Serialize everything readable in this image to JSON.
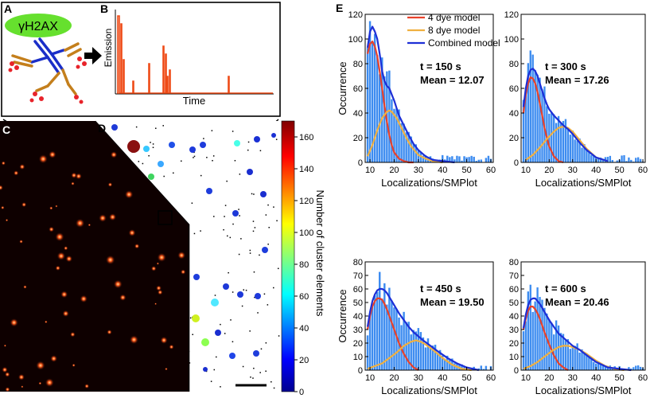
{
  "panel_labels": {
    "A": "A",
    "B": "B",
    "C": "C",
    "D": "D",
    "E": "E"
  },
  "panel_a": {
    "antigen_label": "γH2AX"
  },
  "panel_b": {
    "ylabel": "Emission",
    "xlabel": "Time"
  },
  "colorbar": {
    "label": "Number of cluster elements",
    "ticks": [
      0,
      20,
      40,
      60,
      80,
      100,
      120,
      140,
      160
    ],
    "range": [
      0,
      170
    ]
  },
  "colors": {
    "four_dye": "#e8412a",
    "eight_dye": "#f0b040",
    "combined": "#1d2fd6",
    "hist": "#3d8cf0",
    "emission": "#ee4a16"
  },
  "legend": {
    "items": [
      {
        "label": "4 dye model",
        "color": "#e8412a"
      },
      {
        "label": "8 dye model",
        "color": "#f0b040"
      },
      {
        "label": "Combined model",
        "color": "#1d2fd6"
      }
    ]
  },
  "chart_data": [
    {
      "type": "bar",
      "title": "t = 150 s",
      "subtitle": "Mean = 12.07",
      "xlabel": "Localizations/SMPlot",
      "ylabel": "Occurrence",
      "xlim": [
        8,
        61
      ],
      "ylim": [
        0,
        120
      ],
      "xticks": [
        10,
        20,
        30,
        40,
        50,
        60
      ],
      "yticks": [
        0,
        20,
        40,
        60,
        80,
        100,
        120
      ],
      "series": [
        {
          "name": "4 dye model",
          "x": [
            9,
            10,
            11,
            12,
            13,
            14,
            15,
            16,
            17,
            18,
            19,
            20,
            22,
            24,
            26,
            28
          ],
          "values": [
            88,
            96,
            98,
            94,
            86,
            74,
            60,
            46,
            33,
            22,
            14,
            8,
            3,
            1,
            0,
            0
          ]
        },
        {
          "name": "8 dye model",
          "x": [
            9,
            11,
            13,
            15,
            17,
            18,
            19,
            21,
            23,
            25,
            27,
            30,
            33,
            36,
            40
          ],
          "values": [
            5,
            14,
            26,
            36,
            41,
            42,
            41,
            36,
            28,
            20,
            13,
            6,
            3,
            1,
            0
          ]
        },
        {
          "name": "Combined model",
          "x": [
            9,
            10,
            11,
            12,
            13,
            14,
            15,
            16,
            17,
            18,
            19,
            20,
            21,
            22,
            24,
            26,
            28,
            30,
            33,
            36,
            40,
            45
          ],
          "values": [
            93,
            106,
            110,
            106,
            100,
            88,
            74,
            66,
            62,
            60,
            55,
            50,
            44,
            38,
            30,
            22,
            15,
            10,
            5,
            2,
            1,
            0
          ]
        }
      ]
    },
    {
      "type": "bar",
      "title": "t = 300 s",
      "subtitle": "Mean = 17.26",
      "xlabel": "Localizations/SMPlot",
      "ylabel": "",
      "xlim": [
        8,
        61
      ],
      "ylim": [
        0,
        120
      ],
      "xticks": [
        10,
        20,
        30,
        40,
        50,
        60
      ],
      "yticks": [
        0,
        20,
        40,
        60,
        80,
        100,
        120
      ],
      "series": [
        {
          "name": "4 dye model",
          "x": [
            9,
            10,
            11,
            12,
            13,
            14,
            15,
            16,
            17,
            18,
            19,
            20,
            22,
            24,
            26
          ],
          "values": [
            40,
            55,
            64,
            69,
            68,
            64,
            57,
            48,
            38,
            28,
            20,
            13,
            5,
            1,
            0
          ]
        },
        {
          "name": "8 dye model",
          "x": [
            10,
            13,
            16,
            19,
            22,
            24,
            26,
            28,
            30,
            33,
            36,
            40,
            45
          ],
          "values": [
            2,
            6,
            12,
            19,
            25,
            28,
            29,
            28,
            25,
            18,
            11,
            4,
            1
          ]
        },
        {
          "name": "Combined model",
          "x": [
            9,
            10,
            11,
            12,
            13,
            14,
            15,
            16,
            17,
            18,
            19,
            20,
            22,
            24,
            26,
            28,
            30,
            33,
            36,
            40,
            45
          ],
          "values": [
            45,
            60,
            70,
            75,
            76,
            74,
            70,
            64,
            58,
            52,
            47,
            43,
            38,
            34,
            30,
            27,
            23,
            16,
            10,
            4,
            1
          ]
        }
      ]
    },
    {
      "type": "bar",
      "title": "t = 450 s",
      "subtitle": "Mean = 19.50",
      "xlabel": "Localizations/SMPlot",
      "ylabel": "Occurrence",
      "xlim": [
        8,
        61
      ],
      "ylim": [
        0,
        80
      ],
      "xticks": [
        10,
        20,
        30,
        40,
        50,
        60
      ],
      "yticks": [
        0,
        10,
        20,
        30,
        40,
        50,
        60,
        70,
        80
      ],
      "series": [
        {
          "name": "4 dye model",
          "x": [
            9,
            10,
            11,
            12,
            13,
            14,
            15,
            16,
            17,
            18,
            20,
            22,
            24,
            26,
            28,
            30
          ],
          "values": [
            30,
            40,
            47,
            51,
            53,
            53,
            52,
            49,
            45,
            40,
            30,
            20,
            12,
            6,
            2,
            0
          ]
        },
        {
          "name": "8 dye model",
          "x": [
            9,
            12,
            15,
            18,
            21,
            24,
            27,
            29,
            31,
            33,
            36,
            40,
            44,
            48,
            52
          ],
          "values": [
            1,
            3,
            5,
            9,
            13,
            18,
            21,
            22,
            21,
            19,
            15,
            9,
            4,
            1,
            0
          ]
        },
        {
          "name": "Combined model",
          "x": [
            9,
            10,
            11,
            12,
            13,
            14,
            15,
            16,
            17,
            18,
            20,
            22,
            24,
            26,
            28,
            30,
            32,
            35,
            38,
            42,
            46,
            50,
            55
          ],
          "values": [
            32,
            43,
            51,
            56,
            59,
            60,
            60,
            59,
            57,
            54,
            48,
            42,
            37,
            32,
            28,
            25,
            22,
            18,
            14,
            9,
            5,
            2,
            0
          ]
        }
      ]
    },
    {
      "type": "bar",
      "title": "t = 600 s",
      "subtitle": "Mean = 20.46",
      "xlabel": "Localizations/SMPlot",
      "ylabel": "",
      "xlim": [
        8,
        61
      ],
      "ylim": [
        0,
        80
      ],
      "xticks": [
        10,
        20,
        30,
        40,
        50,
        60
      ],
      "yticks": [
        0,
        10,
        20,
        30,
        40,
        50,
        60,
        70,
        80
      ],
      "series": [
        {
          "name": "4 dye model",
          "x": [
            9,
            10,
            11,
            12,
            13,
            14,
            15,
            16,
            17,
            18,
            20,
            22,
            24,
            26,
            28
          ],
          "values": [
            30,
            38,
            44,
            47,
            47,
            45,
            42,
            38,
            33,
            28,
            19,
            11,
            5,
            2,
            0
          ]
        },
        {
          "name": "8 dye model",
          "x": [
            9,
            12,
            15,
            18,
            21,
            24,
            26,
            28,
            30,
            33,
            36,
            40,
            44,
            48,
            52
          ],
          "values": [
            1,
            3,
            6,
            10,
            14,
            17,
            18,
            18,
            17,
            15,
            12,
            7,
            3,
            1,
            0
          ]
        },
        {
          "name": "Combined model",
          "x": [
            9,
            10,
            11,
            12,
            13,
            14,
            15,
            16,
            17,
            18,
            20,
            22,
            24,
            26,
            28,
            30,
            33,
            36,
            40,
            45,
            50,
            55
          ],
          "values": [
            31,
            41,
            48,
            52,
            53,
            53,
            51,
            49,
            46,
            43,
            37,
            32,
            27,
            24,
            21,
            18,
            15,
            11,
            6,
            2,
            1,
            0
          ]
        }
      ]
    }
  ]
}
